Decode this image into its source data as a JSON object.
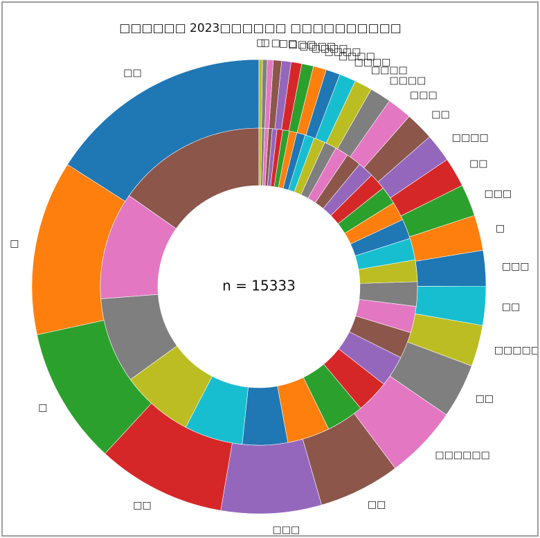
{
  "chart_data": {
    "type": "pie",
    "title": "□□□□□□ 2023□□□□□□ □□□□□□□□□□",
    "center_text": "n = 15333",
    "colors": [
      "#1f77b4",
      "#ff7f0e",
      "#2ca02c",
      "#d62728",
      "#9467bd",
      "#8c564b",
      "#e377c2",
      "#7f7f7f",
      "#bcbd22",
      "#17becf"
    ],
    "outer": {
      "labels": [
        "□□",
        "□",
        "□",
        "□□",
        "□□□",
        "□□",
        "□□□□□□",
        "□□",
        "□□□□□",
        "□□",
        "□□□",
        "□",
        "□□□",
        "□□",
        "□□□□",
        "□□",
        "□□□",
        "□□□□",
        "□□□□",
        "□□□□",
        "□□□□",
        "□□□□",
        "□□□□",
        "□□□□",
        "□□□",
        "□□",
        "□",
        "□",
        "□"
      ],
      "values": [
        19.0,
        14.8,
        11.6,
        10.9,
        8.5,
        6.9,
        6.2,
        4.6,
        3.5,
        3.3,
        3.0,
        3.0,
        2.7,
        2.5,
        2.4,
        2.4,
        2.1,
        1.8,
        1.5,
        1.4,
        1.2,
        1.1,
        1.0,
        0.9,
        0.8,
        0.7,
        0.5,
        0.4,
        0.3
      ]
    },
    "inner": {
      "values": [
        15.9,
        11.4,
        9.1,
        7.7,
        6.2,
        4.8,
        4.5,
        4.0,
        3.5,
        3.3,
        2.8,
        2.8,
        2.6,
        2.3,
        2.3,
        2.1,
        2.0,
        1.9,
        1.8,
        1.7,
        1.6,
        1.4,
        1.3,
        1.2,
        1.0,
        0.9,
        0.8,
        0.7,
        0.6,
        0.5,
        0.4,
        0.4,
        0.3,
        0.3
      ]
    }
  }
}
